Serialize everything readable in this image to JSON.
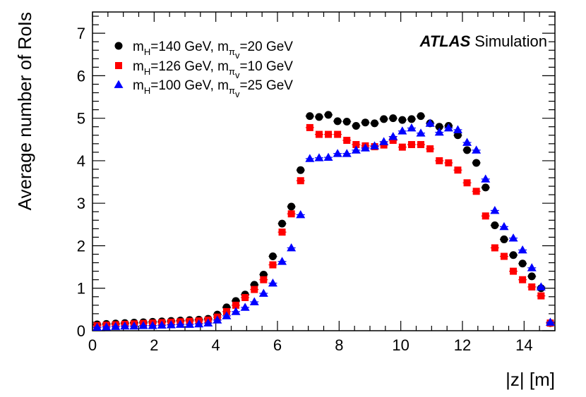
{
  "chart_data": {
    "type": "scatter",
    "xlabel": "|z| [m]",
    "ylabel": "Average number of RoIs",
    "xlim": [
      0,
      15
    ],
    "ylim": [
      0,
      7.5
    ],
    "x_ticks": [
      "0",
      "2",
      "4",
      "6",
      "8",
      "10",
      "12",
      "14"
    ],
    "y_ticks": [
      "0",
      "1",
      "2",
      "3",
      "4",
      "5",
      "6",
      "7"
    ],
    "annotation": {
      "bold": "ATLAS",
      "plain": "Simulation"
    },
    "series": [
      {
        "name": "mH=140 GeV, mπv=20 GeV",
        "legend": {
          "a": "m",
          "a_sub": "H",
          "b": "=140 GeV, m",
          "b_sub": "π",
          "b_subsub": "v",
          "c": "=20 GeV"
        },
        "marker": "circle",
        "color": "#000000",
        "x": [
          0.15,
          0.45,
          0.75,
          1.05,
          1.35,
          1.65,
          1.95,
          2.25,
          2.55,
          2.85,
          3.15,
          3.45,
          3.75,
          4.05,
          4.35,
          4.65,
          4.95,
          5.25,
          5.55,
          5.85,
          6.15,
          6.45,
          6.75,
          7.05,
          7.35,
          7.65,
          7.95,
          8.25,
          8.55,
          8.85,
          9.15,
          9.45,
          9.75,
          10.05,
          10.35,
          10.65,
          10.95,
          11.25,
          11.55,
          11.85,
          12.15,
          12.45,
          12.75,
          13.05,
          13.35,
          13.65,
          13.95,
          14.25,
          14.55,
          14.85
        ],
        "y": [
          0.15,
          0.16,
          0.17,
          0.18,
          0.19,
          0.2,
          0.21,
          0.22,
          0.23,
          0.24,
          0.25,
          0.26,
          0.28,
          0.38,
          0.55,
          0.7,
          0.85,
          1.08,
          1.32,
          1.75,
          2.52,
          2.92,
          3.78,
          5.05,
          5.03,
          5.08,
          4.93,
          4.92,
          4.82,
          4.9,
          4.88,
          4.98,
          5.0,
          4.96,
          4.98,
          5.05,
          4.88,
          4.8,
          4.82,
          4.6,
          4.25,
          3.95,
          3.37,
          2.48,
          2.15,
          1.78,
          1.58,
          1.28,
          1.0,
          0.18
        ]
      },
      {
        "name": "mH=126 GeV, mπv=10 GeV",
        "legend": {
          "a": "m",
          "a_sub": "H",
          "b": "=126 GeV, m",
          "b_sub": "π",
          "b_subsub": "v",
          "c": "=10 GeV"
        },
        "marker": "square",
        "color": "#ff0000",
        "x": [
          0.15,
          0.45,
          0.75,
          1.05,
          1.35,
          1.65,
          1.95,
          2.25,
          2.55,
          2.85,
          3.15,
          3.45,
          3.75,
          4.05,
          4.35,
          4.65,
          4.95,
          5.25,
          5.55,
          5.85,
          6.15,
          6.45,
          6.75,
          7.05,
          7.35,
          7.65,
          7.95,
          8.25,
          8.55,
          8.85,
          9.15,
          9.45,
          9.75,
          10.05,
          10.35,
          10.65,
          10.95,
          11.25,
          11.55,
          11.85,
          12.15,
          12.45,
          12.75,
          13.05,
          13.35,
          13.65,
          13.95,
          14.25,
          14.55,
          14.85
        ],
        "y": [
          0.12,
          0.13,
          0.14,
          0.15,
          0.16,
          0.17,
          0.18,
          0.19,
          0.2,
          0.21,
          0.22,
          0.23,
          0.25,
          0.32,
          0.45,
          0.6,
          0.78,
          0.97,
          1.2,
          1.55,
          2.32,
          2.75,
          3.53,
          4.78,
          4.62,
          4.62,
          4.62,
          4.48,
          4.38,
          4.35,
          4.33,
          4.37,
          4.48,
          4.32,
          4.38,
          4.38,
          4.28,
          4.0,
          3.95,
          3.78,
          3.48,
          3.28,
          2.7,
          1.95,
          1.75,
          1.4,
          1.2,
          1.03,
          0.82,
          0.18
        ]
      },
      {
        "name": "mH=100 GeV, mπv=25 GeV",
        "legend": {
          "a": "m",
          "a_sub": "H",
          "b": "=100 GeV, m",
          "b_sub": "π",
          "b_subsub": "v",
          "c": "=25 GeV"
        },
        "marker": "triangle",
        "color": "#0000ff",
        "x": [
          0.15,
          0.45,
          0.75,
          1.05,
          1.35,
          1.65,
          1.95,
          2.25,
          2.55,
          2.85,
          3.15,
          3.45,
          3.75,
          4.05,
          4.35,
          4.65,
          4.95,
          5.25,
          5.55,
          5.85,
          6.15,
          6.45,
          6.75,
          7.05,
          7.35,
          7.65,
          7.95,
          8.25,
          8.55,
          8.85,
          9.15,
          9.45,
          9.75,
          10.05,
          10.35,
          10.65,
          10.95,
          11.25,
          11.55,
          11.85,
          12.15,
          12.45,
          12.75,
          13.05,
          13.35,
          13.65,
          13.95,
          14.25,
          14.55,
          14.85
        ],
        "y": [
          0.08,
          0.09,
          0.1,
          0.11,
          0.11,
          0.12,
          0.12,
          0.13,
          0.14,
          0.15,
          0.15,
          0.16,
          0.18,
          0.25,
          0.35,
          0.45,
          0.55,
          0.68,
          0.88,
          1.12,
          1.63,
          1.95,
          2.73,
          4.05,
          4.07,
          4.08,
          4.17,
          4.17,
          4.25,
          4.3,
          4.35,
          4.45,
          4.57,
          4.7,
          4.77,
          4.65,
          4.88,
          4.67,
          4.77,
          4.73,
          4.43,
          4.25,
          3.57,
          2.83,
          2.45,
          2.18,
          1.9,
          1.48,
          1.03,
          0.2
        ]
      }
    ]
  }
}
